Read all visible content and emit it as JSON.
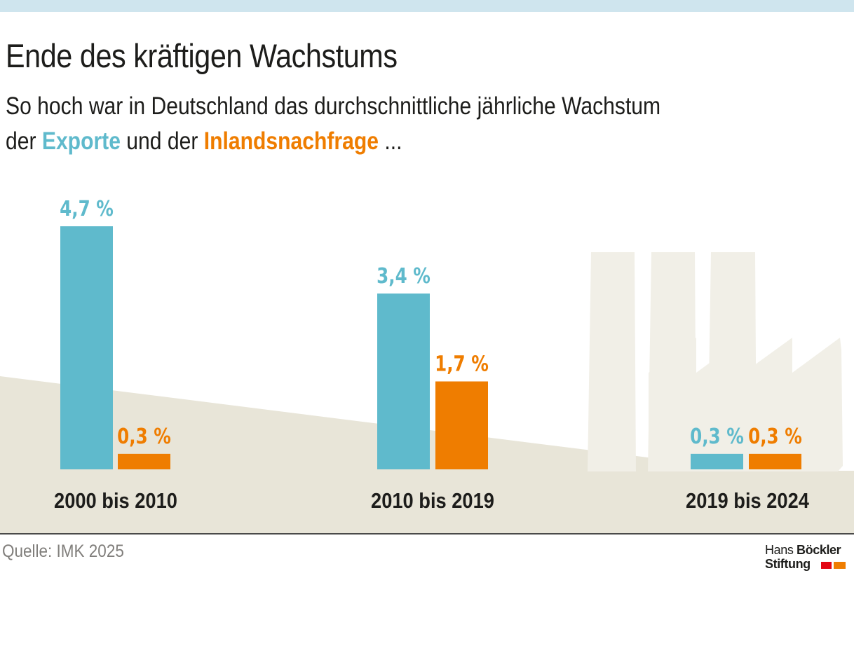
{
  "title": "Ende des kräftigen Wachstums",
  "subtitle": {
    "line1": "So hoch war in Deutschland das durchschnittliche jährliche Wachstum",
    "line2_prefix": "der ",
    "exports_label": "Exporte",
    "line2_middle": " und der ",
    "domestic_label": "Inlandsnachfrage",
    "line2_suffix": " ..."
  },
  "source": "Quelle: IMK 2025",
  "logo": {
    "line1_regular": "Hans ",
    "line1_bold": "Böckler",
    "line2": "Stiftung"
  },
  "colors": {
    "exports": "#5fbacc",
    "domestic": "#ef7d00",
    "background_shape": "#e8e5d8",
    "factory": "#f1efe7",
    "baseline": "#4a4a49",
    "text": "#1d1d1b",
    "source_text": "#807e7b",
    "topbar": "#cfe5ee"
  },
  "chart_data": {
    "type": "bar",
    "categories": [
      "2000 bis 2010",
      "2010 bis 2019",
      "2019 bis 2024"
    ],
    "series": [
      {
        "name": "Exporte",
        "values": [
          4.7,
          3.4,
          0.3
        ],
        "labels": [
          "4,7 %",
          "3,4 %",
          "0,3 %"
        ]
      },
      {
        "name": "Inlandsnachfrage",
        "values": [
          0.3,
          1.7,
          0.3
        ],
        "labels": [
          "0,3 %",
          "1,7 %",
          "0,3 %"
        ]
      }
    ],
    "title": "Ende des kräftigen Wachstums",
    "xlabel": "",
    "ylabel": "",
    "ylim": [
      0,
      4.7
    ],
    "grid": false,
    "legend": "none (series named in subtitle)"
  }
}
